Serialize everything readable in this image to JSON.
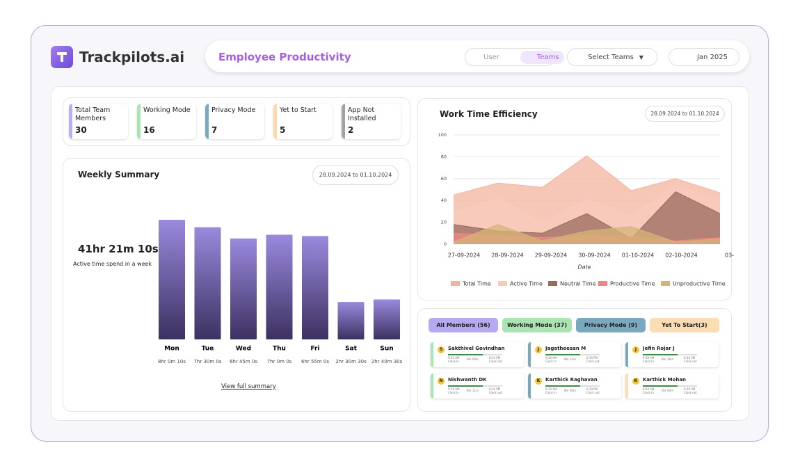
{
  "header": {
    "brand": "Trackpilots.ai",
    "title": "Employee Productivity",
    "view_toggle": [
      "User",
      "Teams"
    ],
    "team_select": "Select Teams",
    "month": "Jan 2025"
  },
  "stats": [
    {
      "label": "Total Team Members",
      "value": 30,
      "color": "#bcaef2"
    },
    {
      "label": "Working Mode",
      "value": 16,
      "color": "#a9e5b2"
    },
    {
      "label": "Privacy Mode",
      "value": 7,
      "color": "#79a9bf"
    },
    {
      "label": "Yet to Start",
      "value": 5,
      "color": "#fbd9a8"
    },
    {
      "label": "App Not Installed",
      "value": 2,
      "color": "#a3a3a3"
    }
  ],
  "chart_data": [
    {
      "type": "bar",
      "title": "Weekly Summary",
      "date_range": "28.09.2024 to 01.10.2024",
      "total": "41hr 21m 10s",
      "total_caption": "Active time spend in a week",
      "categories": [
        "Mon",
        "Tue",
        "Wed",
        "Thu",
        "Fri",
        "Sat",
        "Sun"
      ],
      "values": [
        28810,
        27000,
        24300,
        25200,
        24900,
        9030,
        9630
      ],
      "value_labels": [
        "8hr 0m 10s",
        "7hr 30m 0s",
        "6hr 45m 0s",
        "7hr 0m 0s",
        "6hr 55m 0s",
        "2hr 30m 30s",
        "2hr 40m 30s"
      ],
      "color": "#9a89de",
      "link": "View full summary"
    },
    {
      "type": "area",
      "title": "Work Time Efficiency",
      "date_range": "28.09.2024 to 01.10.2024",
      "xlabel": "Date",
      "categories": [
        "27-09-2024",
        "28-09-2024",
        "29-09-2024",
        "30-09-2024",
        "01-10-2024",
        "02-10-2024",
        "03-"
      ],
      "ylim": [
        0,
        100
      ],
      "yticks": [
        0,
        20,
        40,
        60,
        80,
        100
      ],
      "grid": true,
      "series": [
        {
          "name": "Total Time",
          "color": "#f3b49d",
          "values": [
            45,
            56,
            52,
            81,
            49,
            60,
            47
          ]
        },
        {
          "name": "Active Time",
          "color": "#f7cbbd",
          "values": [
            30,
            42,
            20,
            41,
            27,
            54,
            40
          ]
        },
        {
          "name": "Neutral Time",
          "color": "#9a6a5d",
          "values": [
            18,
            12,
            10,
            28,
            5,
            48,
            28
          ]
        },
        {
          "name": "Productive Time",
          "color": "#f08585",
          "values": [
            10,
            8,
            6,
            8,
            7,
            3,
            6
          ]
        },
        {
          "name": "Unproductive Time",
          "color": "#d5b476",
          "values": [
            2,
            18,
            3,
            12,
            16,
            2,
            5
          ]
        }
      ]
    }
  ],
  "members": {
    "tabs": [
      {
        "label": "All Members (56)",
        "color": "#b6a9f1"
      },
      {
        "label": "Working Mode (37)",
        "color": "#a9e5b2"
      },
      {
        "label": "Privacy Mode (9)",
        "color": "#79a9bf"
      },
      {
        "label": "Yet To Start(3)",
        "color": "#fcdcb2"
      }
    ],
    "cards": [
      {
        "initial": "S",
        "name": "Sakthivel Govindhan",
        "clock_in": "9:02 AM",
        "clock_in_label": "Clock In",
        "duration": "9hr 00m",
        "clock_out": "6:30 PM",
        "clock_out_label": "Clock out",
        "progress": 88,
        "progress_label": "88%",
        "color": "#a9e5b2"
      },
      {
        "initial": "J",
        "name": "Jagatheesan M",
        "clock_in": "9:30 AM",
        "clock_in_label": "Clock In",
        "duration": "8hr 32m",
        "clock_out": "6:30 PM",
        "clock_out_label": "Clock out",
        "progress": 73,
        "progress_label": "73%",
        "color": "#79a9bf"
      },
      {
        "initial": "J",
        "name": "Jefin Rojar J",
        "clock_in": "9:30 AM",
        "clock_in_label": "Clock In",
        "duration": "8hr 36m",
        "clock_out": "6:30 PM",
        "clock_out_label": "Clock out",
        "progress": 81,
        "progress_label": "81%",
        "color": "#79a9bf"
      },
      {
        "initial": "N",
        "name": "Nishwanth DK",
        "clock_in": "9:30 AM",
        "clock_in_label": "Clock In",
        "duration": "8hr 11m",
        "clock_out": "6:30 PM",
        "clock_out_label": "Clock out",
        "progress": 78,
        "progress_label": "78%",
        "color": "#a9e5b2"
      },
      {
        "initial": "K",
        "name": "Karthick Raghavan",
        "clock_in": "9:30 AM",
        "clock_in_label": "Clock In",
        "duration": "8hr 00m",
        "clock_out": "6:30 PM",
        "clock_out_label": "Clock out",
        "progress": 74,
        "progress_label": "74%",
        "color": "#79a9bf"
      },
      {
        "initial": "K",
        "name": "Karthick Mohan",
        "clock_in": "9:30 AM",
        "clock_in_label": "Clock In",
        "duration": "0hr 00m",
        "clock_out": "6:30 PM",
        "clock_out_label": "Clock out",
        "progress": 1,
        "progress_label": "1%",
        "color": "#fcdcb2"
      }
    ]
  }
}
